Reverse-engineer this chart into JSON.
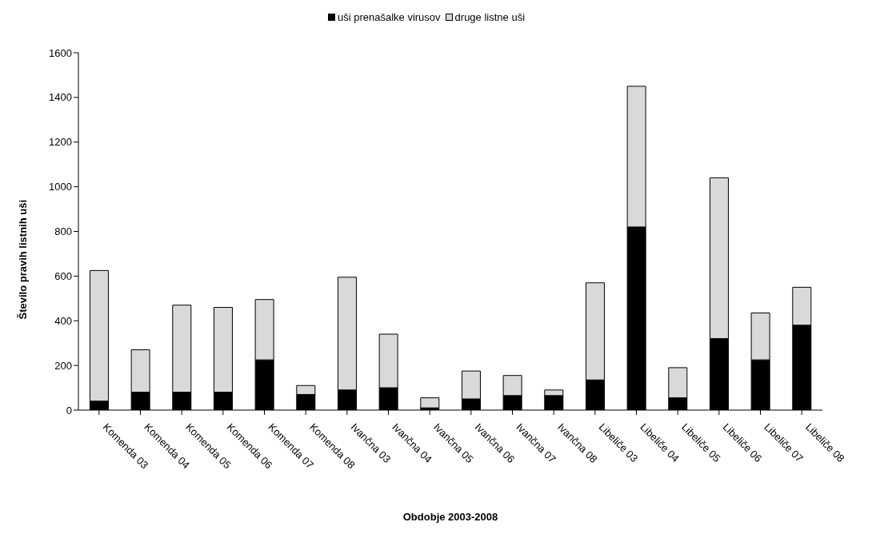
{
  "chart_data": {
    "type": "bar",
    "stacked": true,
    "xlabel": "Obdobje 2003-2008",
    "ylabel": "Število pravih listnih uši",
    "categories": [
      "Komenda 03",
      "Komenda 04",
      "Komenda 05",
      "Komenda 06",
      "Komenda 07",
      "Komenda 08",
      "Ivančna 03",
      "Ivančna  04",
      "Ivančna 05",
      "Ivančna 06",
      "Ivančna 07",
      "Ivančna  08",
      "Libeliče  03",
      "Libeliče 04",
      "Libeliče 05",
      "Libeliče 06",
      "Libeliče  07",
      "Libeliče  08"
    ],
    "series": [
      {
        "name": "uši prenašalke virusov",
        "color": "#000000",
        "values": [
          40,
          80,
          80,
          80,
          225,
          70,
          90,
          100,
          10,
          50,
          65,
          65,
          135,
          820,
          55,
          320,
          225,
          380
        ]
      },
      {
        "name": "druge listne uši",
        "color": "#d9d9d9",
        "values": [
          585,
          190,
          390,
          380,
          270,
          40,
          505,
          240,
          45,
          125,
          90,
          25,
          435,
          630,
          135,
          720,
          210,
          170
        ]
      }
    ],
    "ylim": [
      0,
      1600
    ],
    "yticks": [
      0,
      200,
      400,
      600,
      800,
      1000,
      1200,
      1400,
      1600
    ],
    "grid": false,
    "legend": "top"
  }
}
